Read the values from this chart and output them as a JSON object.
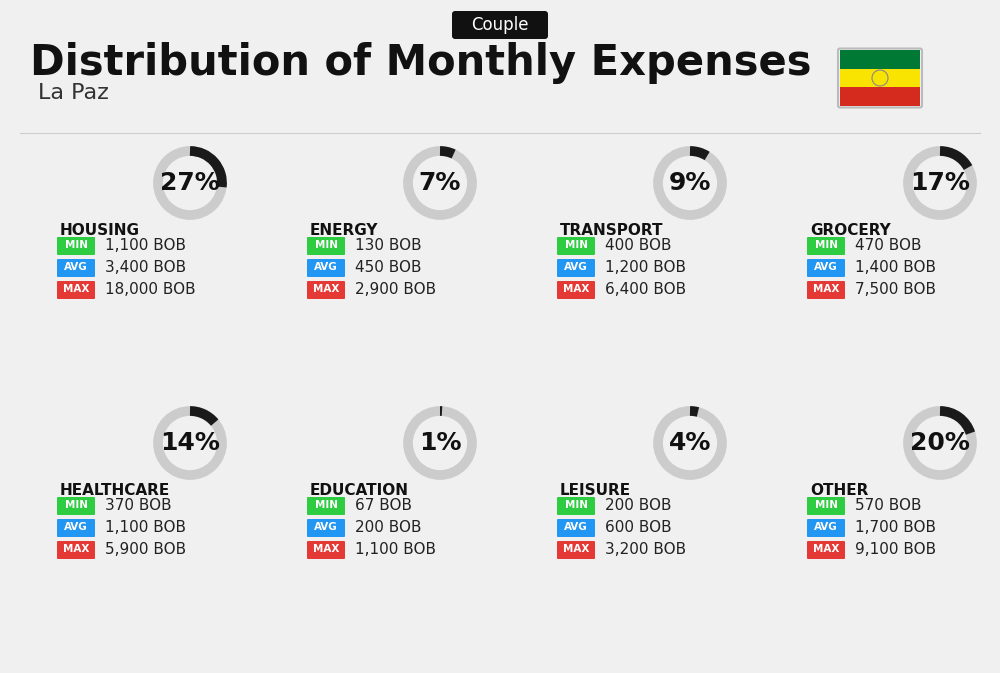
{
  "title": "Distribution of Monthly Expenses",
  "subtitle": "La Paz",
  "badge": "Couple",
  "bg_color": "#f0f0f0",
  "categories": [
    {
      "name": "HOUSING",
      "pct": 27,
      "min": "1,100 BOB",
      "avg": "3,400 BOB",
      "max": "18,000 BOB",
      "icon": "🏙",
      "col": 0,
      "row": 0
    },
    {
      "name": "ENERGY",
      "pct": 7,
      "min": "130 BOB",
      "avg": "450 BOB",
      "max": "2,900 BOB",
      "icon": "⚡",
      "col": 1,
      "row": 0
    },
    {
      "name": "TRANSPORT",
      "pct": 9,
      "min": "400 BOB",
      "avg": "1,200 BOB",
      "max": "6,400 BOB",
      "icon": "🚌",
      "col": 2,
      "row": 0
    },
    {
      "name": "GROCERY",
      "pct": 17,
      "min": "470 BOB",
      "avg": "1,400 BOB",
      "max": "7,500 BOB",
      "icon": "🛒",
      "col": 3,
      "row": 0
    },
    {
      "name": "HEALTHCARE",
      "pct": 14,
      "min": "370 BOB",
      "avg": "1,100 BOB",
      "max": "5,900 BOB",
      "icon": "❤",
      "col": 0,
      "row": 1
    },
    {
      "name": "EDUCATION",
      "pct": 1,
      "min": "67 BOB",
      "avg": "200 BOB",
      "max": "1,100 BOB",
      "icon": "🎓",
      "col": 1,
      "row": 1
    },
    {
      "name": "LEISURE",
      "pct": 4,
      "min": "200 BOB",
      "avg": "600 BOB",
      "max": "3,200 BOB",
      "icon": "🛍",
      "col": 2,
      "row": 1
    },
    {
      "name": "OTHER",
      "pct": 20,
      "min": "570 BOB",
      "avg": "1,700 BOB",
      "max": "9,100 BOB",
      "icon": "💰",
      "col": 3,
      "row": 1
    }
  ],
  "color_min": "#2ecc40",
  "color_avg": "#2196f3",
  "color_max": "#e53935",
  "color_ring_active": "#1a1a1a",
  "color_ring_inactive": "#cccccc",
  "flag_colors": [
    "#d52b1e",
    "#f9e300",
    "#007934"
  ],
  "title_fontsize": 30,
  "subtitle_fontsize": 16,
  "badge_fontsize": 12,
  "cat_fontsize": 11,
  "val_fontsize": 11,
  "pct_fontsize": 18
}
